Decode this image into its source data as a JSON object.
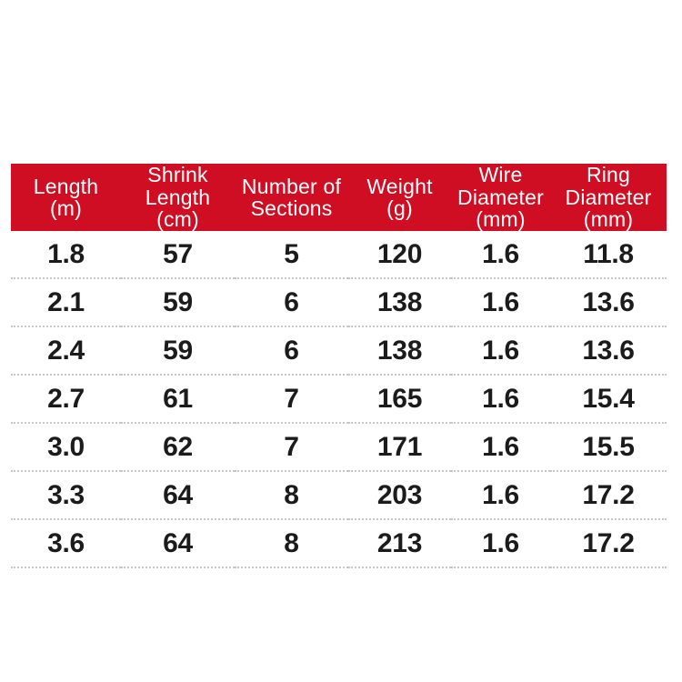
{
  "page": {
    "background_color": "#ffffff"
  },
  "table": {
    "header_bg_color": "#d00e23",
    "header_text_color": "#ffffff",
    "separator_color": "#c9c7c3",
    "body_text_color": "#1b1b1b",
    "headers": [
      "Length\n(m)",
      "Shrink\nLength\n(cm)",
      "Number of\nSections",
      "Weight\n(g)",
      "Wire\nDiameter\n(mm)",
      "Ring\nDiameter\n(mm)"
    ],
    "rows": [
      [
        "1.8",
        "57",
        "5",
        "120",
        "1.6",
        "11.8"
      ],
      [
        "2.1",
        "59",
        "6",
        "138",
        "1.6",
        "13.6"
      ],
      [
        "2.4",
        "59",
        "6",
        "138",
        "1.6",
        "13.6"
      ],
      [
        "2.7",
        "61",
        "7",
        "165",
        "1.6",
        "15.4"
      ],
      [
        "3.0",
        "62",
        "7",
        "171",
        "1.6",
        "15.5"
      ],
      [
        "3.3",
        "64",
        "8",
        "203",
        "1.6",
        "17.2"
      ],
      [
        "3.6",
        "64",
        "8",
        "213",
        "1.6",
        "17.2"
      ]
    ]
  }
}
